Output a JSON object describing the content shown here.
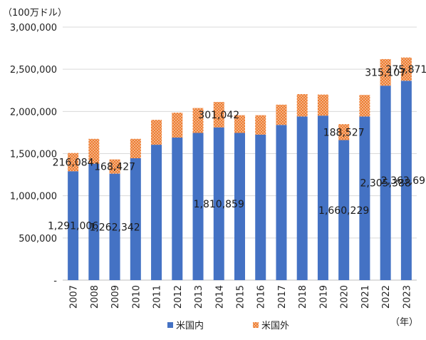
{
  "chart_data": {
    "type": "bar",
    "stacked": true,
    "y_unit": "（100万ドル）",
    "x_unit": "（年）",
    "categories": [
      "2007",
      "2008",
      "2009",
      "2010",
      "2011",
      "2012",
      "2013",
      "2014",
      "2015",
      "2016",
      "2017",
      "2018",
      "2019",
      "2020",
      "2021",
      "2022",
      "2023"
    ],
    "series": [
      {
        "name": "米国内",
        "color": "#4472c4",
        "values": [
          1291006,
          1380000,
          1262342,
          1445000,
          1605000,
          1690000,
          1745000,
          1810859,
          1745000,
          1725000,
          1840000,
          1940000,
          1950000,
          1660229,
          1940000,
          2305388,
          2363693
        ]
      },
      {
        "name": "米国外",
        "color": "#ed7d31",
        "values": [
          216084,
          295000,
          168427,
          230000,
          295000,
          295000,
          295000,
          301042,
          210000,
          230000,
          240000,
          265000,
          250000,
          188527,
          255000,
          315107,
          275871
        ]
      }
    ],
    "ylim": [
      0,
      3000000
    ],
    "yticks": [
      {
        "value": 0,
        "label": "-"
      },
      {
        "value": 500000,
        "label": "500,000"
      },
      {
        "value": 1000000,
        "label": "1,000,000"
      },
      {
        "value": 1500000,
        "label": "1,500,000"
      },
      {
        "value": 2000000,
        "label": "2,000,000"
      },
      {
        "value": 2500000,
        "label": "2,500,000"
      },
      {
        "value": 3000000,
        "label": "3,000,000"
      }
    ],
    "grid": true,
    "legend": "bottom",
    "data_labels": [
      {
        "series": 0,
        "index": 0,
        "text": "1,291,006"
      },
      {
        "series": 1,
        "index": 0,
        "text": "216,084"
      },
      {
        "series": 0,
        "index": 2,
        "text": "1,262,342"
      },
      {
        "series": 1,
        "index": 2,
        "text": "168,427"
      },
      {
        "series": 0,
        "index": 7,
        "text": "1,810,859"
      },
      {
        "series": 1,
        "index": 7,
        "text": "301,042"
      },
      {
        "series": 0,
        "index": 13,
        "text": "1,660,229"
      },
      {
        "series": 1,
        "index": 13,
        "text": "188,527"
      },
      {
        "series": 0,
        "index": 15,
        "text": "2,305,388"
      },
      {
        "series": 1,
        "index": 15,
        "text": "315,107"
      },
      {
        "series": 0,
        "index": 16,
        "text": "2,363,693"
      },
      {
        "series": 1,
        "index": 16,
        "text": "275,871"
      }
    ]
  }
}
